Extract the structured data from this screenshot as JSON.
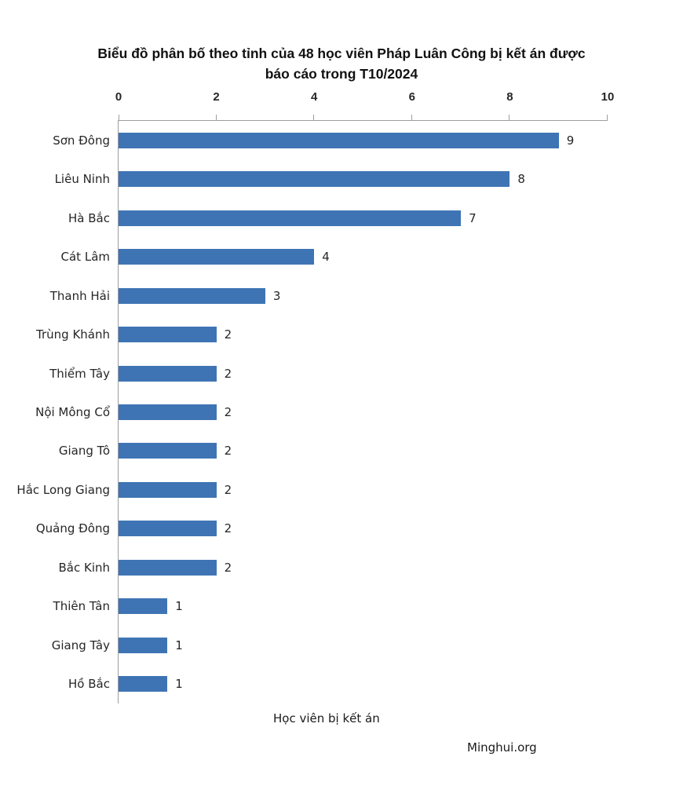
{
  "header": {
    "title_line1": "Biểu đồ phân bố theo tỉnh của 48 học viên Pháp Luân Công bị kết án được",
    "title_line2": "báo cáo trong T10/2024"
  },
  "chart_data": {
    "type": "bar",
    "orientation": "horizontal",
    "title": "Biểu đồ phân bố theo tỉnh của 48 học viên Pháp Luân Công bị kết án được báo cáo trong T10/2024",
    "categories": [
      "Sơn Đông",
      "Liêu Ninh",
      "Hà Bắc",
      "Cát Lâm",
      "Thanh Hải",
      "Trùng Khánh",
      "Thiểm Tây",
      "Nội Mông Cổ",
      "Giang Tô",
      "Hắc Long Giang",
      "Quảng Đông",
      "Bắc Kinh",
      "Thiên Tân",
      "Giang Tây",
      "Hồ Bắc"
    ],
    "values": [
      9,
      8,
      7,
      4,
      3,
      2,
      2,
      2,
      2,
      2,
      2,
      2,
      1,
      1,
      1
    ],
    "xlabel": "Học viên bị kết án",
    "xlim": [
      0,
      10
    ],
    "xticks": [
      0,
      2,
      4,
      6,
      8,
      10
    ],
    "grid": false,
    "legend": false,
    "value_labels": true,
    "bar_color": "#3E74B4",
    "axis_color": "#9E9E9E",
    "text_color": "#262626"
  },
  "footer": {
    "credit": "Minghui.org"
  }
}
